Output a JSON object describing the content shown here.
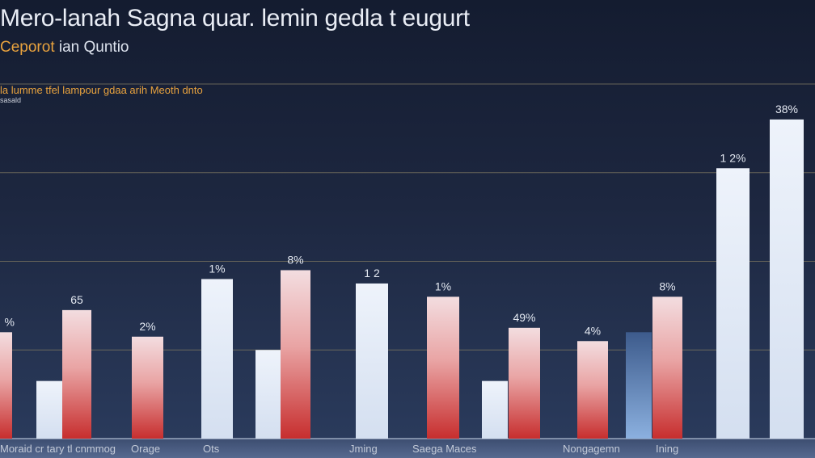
{
  "title": "Mero-lanah Sagna quar. lemin gedla t eugurt",
  "subtitle_accent": "Ceporot",
  "subtitle_rest": " ian Quntio",
  "legend_label": "la lumme tfel lampour gdaa arih Meoth dnto",
  "legend_sublabel": "sasald",
  "colors": {
    "background_top": "#141c30",
    "background_bottom": "#2b3c5e",
    "bar_light": "#dfe8f6",
    "bar_red_top": "#f3dde0",
    "bar_red_bottom": "#c72e2e",
    "bar_blue": "#6f94c4",
    "gridline": "#7a7560",
    "title": "#e9edf5",
    "accent": "#e8a23e"
  },
  "chart_data": {
    "type": "bar",
    "grid": true,
    "ylim": [
      0,
      40
    ],
    "bars": [
      {
        "value": 12,
        "style": "red",
        "label": "%"
      },
      {
        "value": 6.5,
        "style": "light",
        "label": ""
      },
      {
        "value": 14.5,
        "style": "red",
        "label": "65"
      },
      {
        "value": 11.5,
        "style": "red",
        "label": "2%"
      },
      {
        "value": 18,
        "style": "light",
        "label": "1%"
      },
      {
        "value": 10,
        "style": "light",
        "label": ""
      },
      {
        "value": 19,
        "style": "red",
        "label": "8%"
      },
      {
        "value": 17.5,
        "style": "light",
        "label": "1 2"
      },
      {
        "value": 16,
        "style": "red",
        "label": "1%"
      },
      {
        "value": 6.5,
        "style": "light",
        "label": ""
      },
      {
        "value": 12.5,
        "style": "red",
        "label": "49%"
      },
      {
        "value": 11,
        "style": "red",
        "label": "4%"
      },
      {
        "value": 12,
        "style": "blue",
        "label": ""
      },
      {
        "value": 16,
        "style": "red",
        "label": "8%"
      },
      {
        "value": 30.5,
        "style": "light",
        "label": "1 2%"
      },
      {
        "value": 36,
        "style": "light",
        "label": "38%"
      }
    ],
    "categories": [
      "Moraid cr tary tl cnmmog",
      "Orage",
      "Ots",
      "Jming",
      "Saega Maces",
      "Nongagemn",
      "Ining"
    ]
  }
}
